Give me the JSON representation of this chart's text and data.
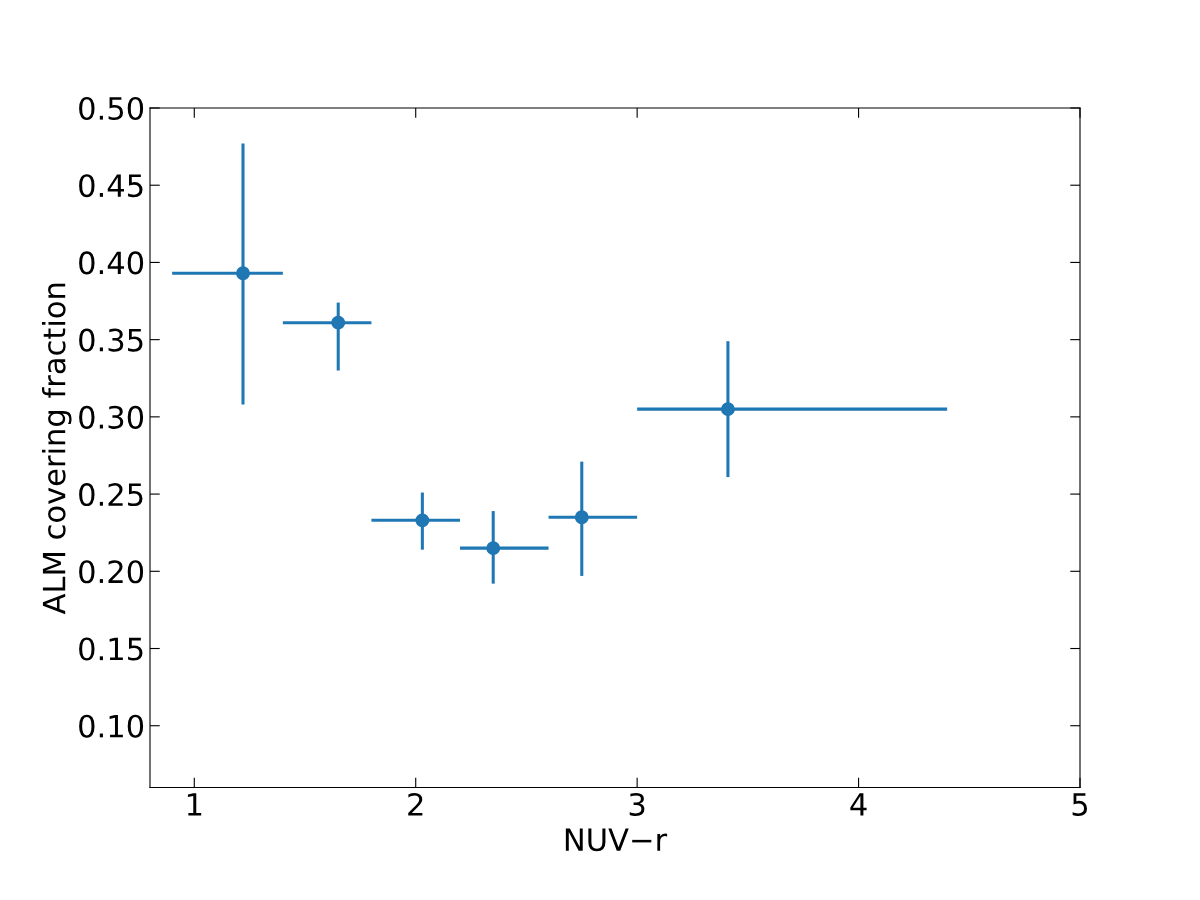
{
  "chart_data": {
    "type": "scatter",
    "xlabel": "NUV−r",
    "ylabel": "ALM covering fraction",
    "x": [
      1.22,
      1.65,
      2.03,
      2.35,
      2.75,
      3.41
    ],
    "values": [
      0.393,
      0.361,
      0.233,
      0.215,
      0.235,
      0.305
    ],
    "errors": [
      [
        0.308,
        0.477
      ],
      [
        0.33,
        0.374
      ],
      [
        0.214,
        0.251
      ],
      [
        0.192,
        0.239
      ],
      [
        0.197,
        0.271
      ],
      [
        0.261,
        0.349
      ]
    ],
    "xerrors": [
      [
        0.9,
        1.4
      ],
      [
        1.4,
        1.8
      ],
      [
        1.8,
        2.2
      ],
      [
        2.2,
        2.6
      ],
      [
        2.6,
        3.0
      ],
      [
        3.0,
        4.4
      ]
    ],
    "color": "#1f77b4",
    "marker": "circle",
    "xlim": [
      0.8,
      5.0
    ],
    "ylim": [
      0.06,
      0.5
    ],
    "xticks": [
      1,
      2,
      3,
      4,
      5
    ],
    "yticks": [
      {
        "value": 0.1,
        "label": "0.10"
      },
      {
        "value": 0.15,
        "label": "0.15"
      },
      {
        "value": 0.2,
        "label": "0.20"
      },
      {
        "value": 0.25,
        "label": "0.25"
      },
      {
        "value": 0.3,
        "label": "0.30"
      },
      {
        "value": 0.35,
        "label": "0.35"
      },
      {
        "value": 0.4,
        "label": "0.40"
      },
      {
        "value": 0.45,
        "label": "0.45"
      },
      {
        "value": 0.5,
        "label": "0.50"
      }
    ],
    "grid": false
  }
}
